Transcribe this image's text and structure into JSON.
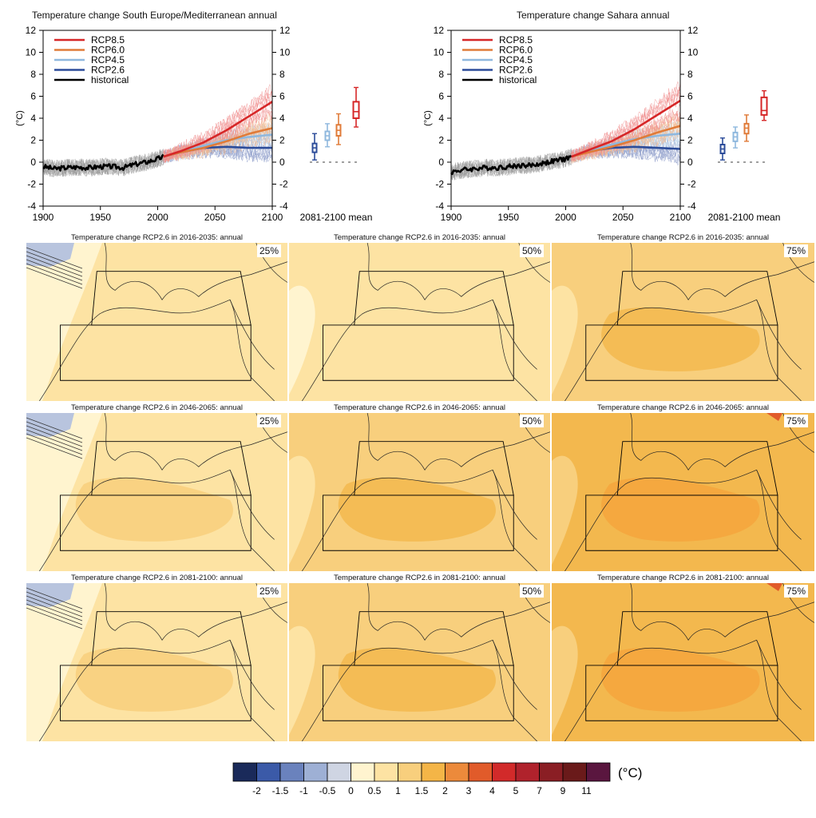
{
  "colors": {
    "rcp85": "#d62728",
    "rcp60": "#e07b39",
    "rcp45": "#8fb8de",
    "rcp26": "#2c4c9a",
    "historical": "#000000",
    "bin_0_05": "#fff4cf",
    "bin_05_1": "#fde3a3",
    "bin_1_15": "#f8cf7d",
    "bin_15_2": "#f3b84e",
    "bin_2_3": "#f4a43d",
    "bin_3_4": "#e15b2a"
  },
  "chart_data": [
    {
      "type": "line",
      "title": "Temperature change South Europe/Mediterranean annual",
      "ylabel": "(°C)",
      "xlim": [
        1900,
        2100
      ],
      "ylim": [
        -4,
        12
      ],
      "x_ticks": [
        "1900",
        "1950",
        "2000",
        "2050",
        "2100"
      ],
      "y_ticks": [
        "-4",
        "-2",
        "0",
        "2",
        "4",
        "6",
        "8",
        "10",
        "12"
      ],
      "legend_position": "top-left",
      "series": [
        {
          "name": "RCP8.5",
          "color_key": "rcp85",
          "x": [
            2005,
            2020,
            2040,
            2060,
            2080,
            2100
          ],
          "y": [
            0.5,
            1.0,
            1.8,
            2.9,
            4.2,
            5.5
          ]
        },
        {
          "name": "RCP6.0",
          "color_key": "rcp60",
          "x": [
            2005,
            2020,
            2040,
            2060,
            2080,
            2100
          ],
          "y": [
            0.5,
            0.9,
            1.3,
            1.9,
            2.6,
            3.1
          ]
        },
        {
          "name": "RCP4.5",
          "color_key": "rcp45",
          "x": [
            2005,
            2020,
            2040,
            2060,
            2080,
            2100
          ],
          "y": [
            0.5,
            0.9,
            1.5,
            2.0,
            2.3,
            2.5
          ]
        },
        {
          "name": "RCP2.6",
          "color_key": "rcp26",
          "x": [
            2005,
            2020,
            2040,
            2060,
            2080,
            2100
          ],
          "y": [
            0.5,
            0.9,
            1.3,
            1.4,
            1.3,
            1.3
          ]
        },
        {
          "name": "historical",
          "color_key": "historical",
          "x": [
            1900,
            1910,
            1920,
            1930,
            1940,
            1950,
            1960,
            1970,
            1980,
            1990,
            2000,
            2005
          ],
          "y": [
            -0.4,
            -0.6,
            -0.5,
            -0.45,
            -0.5,
            -0.4,
            -0.4,
            -0.5,
            -0.2,
            0.0,
            0.3,
            0.5
          ]
        }
      ],
      "boxplot": {
        "label": "2081-2100 mean",
        "boxes": [
          {
            "name": "RCP2.6",
            "color_key": "rcp26",
            "min": 0.2,
            "q1": 0.9,
            "median": 1.3,
            "q3": 1.7,
            "max": 2.6
          },
          {
            "name": "RCP4.5",
            "color_key": "rcp45",
            "min": 1.4,
            "q1": 2.0,
            "median": 2.4,
            "q3": 2.8,
            "max": 3.5
          },
          {
            "name": "RCP6.0",
            "color_key": "rcp60",
            "min": 1.6,
            "q1": 2.4,
            "median": 2.9,
            "q3": 3.4,
            "max": 4.4
          },
          {
            "name": "RCP8.5",
            "color_key": "rcp85",
            "min": 3.2,
            "q1": 4.0,
            "median": 4.6,
            "q3": 5.5,
            "max": 6.8
          }
        ]
      }
    },
    {
      "type": "line",
      "title": "Temperature change Sahara annual",
      "ylabel": "(°C)",
      "xlim": [
        1900,
        2100
      ],
      "ylim": [
        -4,
        12
      ],
      "x_ticks": [
        "1900",
        "1950",
        "2000",
        "2050",
        "2100"
      ],
      "y_ticks": [
        "-4",
        "-2",
        "0",
        "2",
        "4",
        "6",
        "8",
        "10",
        "12"
      ],
      "legend_position": "top-left",
      "series": [
        {
          "name": "RCP8.5",
          "color_key": "rcp85",
          "x": [
            2005,
            2020,
            2040,
            2060,
            2080,
            2100
          ],
          "y": [
            0.5,
            1.1,
            1.9,
            3.0,
            4.3,
            5.6
          ]
        },
        {
          "name": "RCP6.0",
          "color_key": "rcp60",
          "x": [
            2005,
            2020,
            2040,
            2060,
            2080,
            2100
          ],
          "y": [
            0.5,
            0.9,
            1.4,
            2.0,
            2.7,
            3.3
          ]
        },
        {
          "name": "RCP4.5",
          "color_key": "rcp45",
          "x": [
            2005,
            2020,
            2040,
            2060,
            2080,
            2100
          ],
          "y": [
            0.5,
            1.0,
            1.6,
            2.1,
            2.4,
            2.6
          ]
        },
        {
          "name": "RCP2.6",
          "color_key": "rcp26",
          "x": [
            2005,
            2020,
            2040,
            2060,
            2080,
            2100
          ],
          "y": [
            0.5,
            1.0,
            1.3,
            1.4,
            1.3,
            1.2
          ]
        },
        {
          "name": "historical",
          "color_key": "historical",
          "x": [
            1900,
            1910,
            1920,
            1930,
            1940,
            1950,
            1960,
            1970,
            1980,
            1990,
            2000,
            2005
          ],
          "y": [
            -0.9,
            -0.7,
            -0.6,
            -0.5,
            -0.5,
            -0.4,
            -0.3,
            -0.3,
            -0.1,
            0.1,
            0.3,
            0.5
          ]
        }
      ],
      "boxplot": {
        "label": "2081-2100 mean",
        "boxes": [
          {
            "name": "RCP2.6",
            "color_key": "rcp26",
            "min": 0.2,
            "q1": 0.8,
            "median": 1.2,
            "q3": 1.6,
            "max": 2.2
          },
          {
            "name": "RCP4.5",
            "color_key": "rcp45",
            "min": 1.3,
            "q1": 1.9,
            "median": 2.3,
            "q3": 2.7,
            "max": 3.2
          },
          {
            "name": "RCP6.0",
            "color_key": "rcp60",
            "min": 1.9,
            "q1": 2.6,
            "median": 3.1,
            "q3": 3.5,
            "max": 4.3
          },
          {
            "name": "RCP8.5",
            "color_key": "rcp85",
            "min": 3.8,
            "q1": 4.3,
            "median": 4.7,
            "q3": 5.9,
            "max": 6.5
          }
        ]
      }
    },
    {
      "type": "heatmap",
      "title_prefix": "Temperature change RCP2.6 in",
      "title_suffix": ": annual",
      "periods": [
        "2016-2035",
        "2046-2065",
        "2081-2100"
      ],
      "percentiles": [
        "25%",
        "50%",
        "75%"
      ],
      "dominant_bins": [
        [
          "0.5 to 1",
          "0.5 to 1",
          "1 to 1.5"
        ],
        [
          "0.5 to 1",
          "1 to 1.5",
          "1.5 to 2"
        ],
        [
          "0.5 to 1",
          "1 to 1.5",
          "1.5 to 2"
        ]
      ],
      "colorbar": {
        "unit": "(°C)",
        "labels": [
          "-2",
          "-1.5",
          "-1",
          "-0.5",
          "0",
          "0.5",
          "1",
          "1.5",
          "2",
          "3",
          "4",
          "5",
          "7",
          "9",
          "11"
        ],
        "colors": [
          "#1a2a5a",
          "#3b5aa8",
          "#6a82bd",
          "#9eb0d5",
          "#cfd5e3",
          "#fff4cf",
          "#fde3a3",
          "#f8cf7d",
          "#f4b547",
          "#ec8a3b",
          "#e15b2a",
          "#d22a2a",
          "#b0222c",
          "#8a1e24",
          "#6a1a1a",
          "#5a163f"
        ]
      }
    }
  ]
}
